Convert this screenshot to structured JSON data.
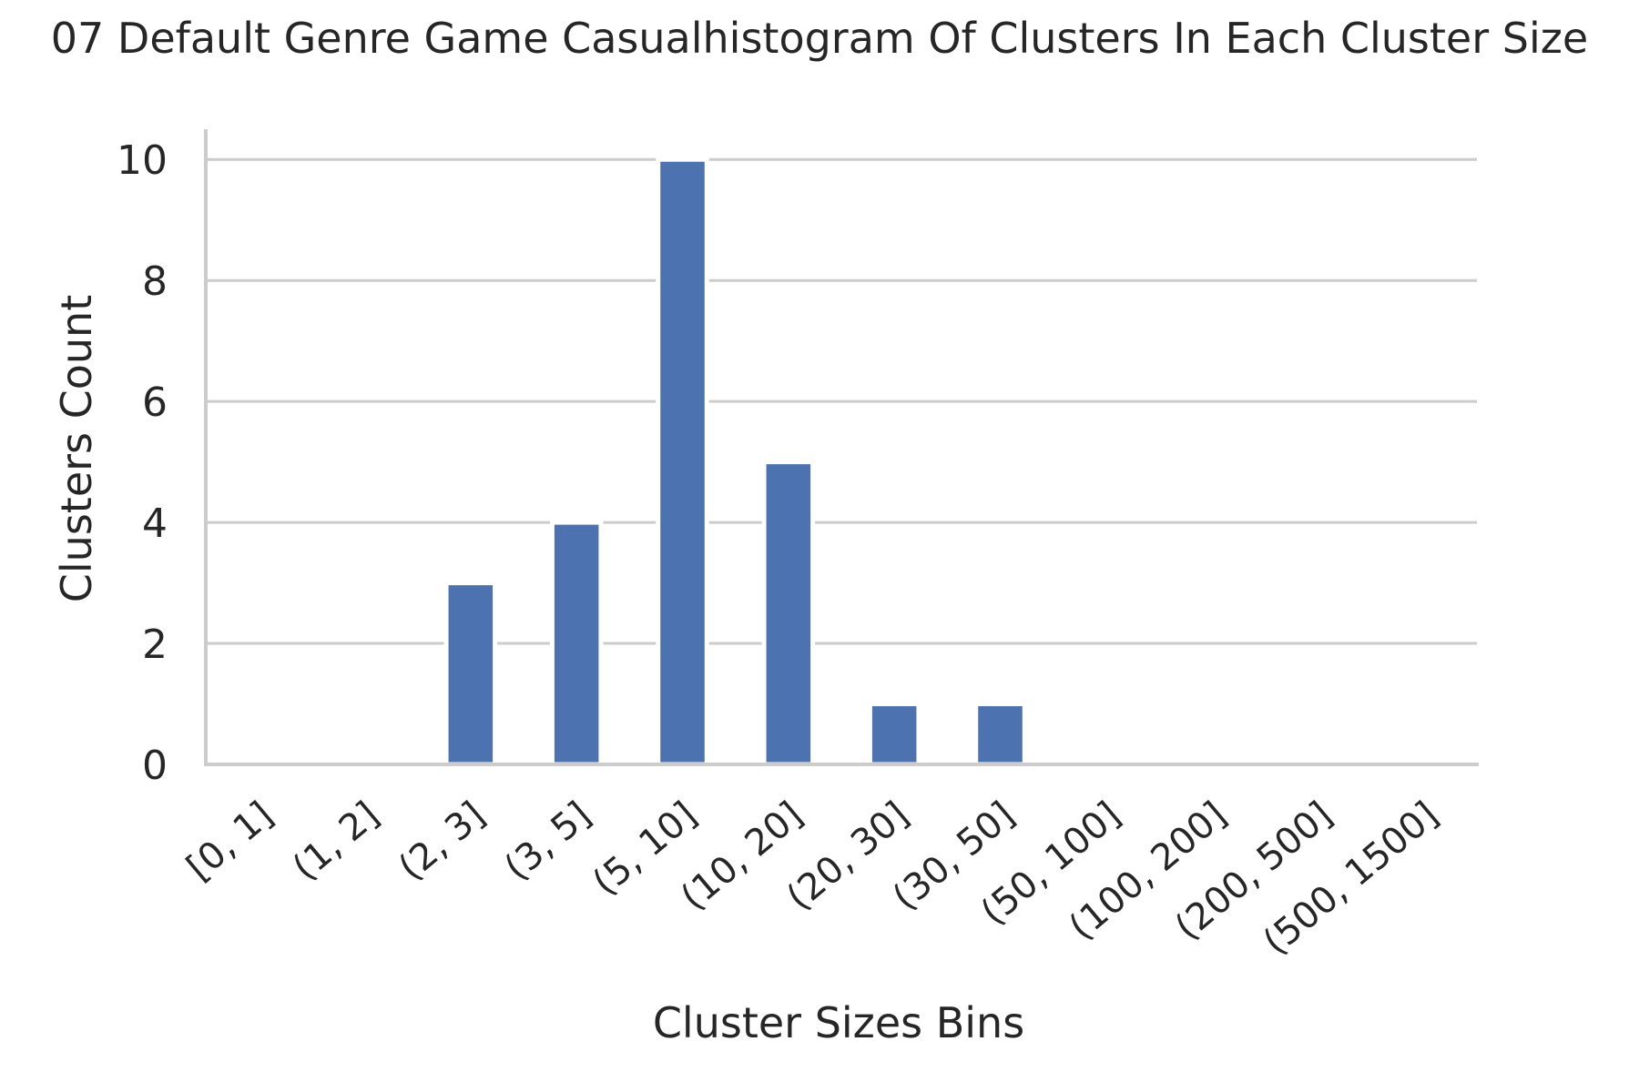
{
  "chart_data": {
    "type": "bar",
    "title": "07 Default Genre Game Casualhistogram Of Clusters In Each Cluster Size",
    "xlabel": "Cluster Sizes Bins",
    "ylabel": "Clusters Count",
    "categories": [
      "[0, 1]",
      "(1, 2]",
      "(2, 3]",
      "(3, 5]",
      "(5, 10]",
      "(10, 20]",
      "(20, 30]",
      "(30, 50]",
      "(50, 100]",
      "(100, 200]",
      "(200, 500]",
      "(500, 1500]"
    ],
    "values": [
      0,
      0,
      3,
      4,
      10,
      5,
      1,
      1,
      0,
      0,
      0,
      0
    ],
    "ylim": [
      0,
      10.5
    ],
    "yticks": [
      0,
      2,
      4,
      6,
      8,
      10
    ],
    "grid": "horizontal",
    "legend": "none",
    "colors": {
      "bar": "#4c72b0",
      "grid": "#cccccc",
      "axis": "#cccccc",
      "text": "#262626"
    }
  }
}
